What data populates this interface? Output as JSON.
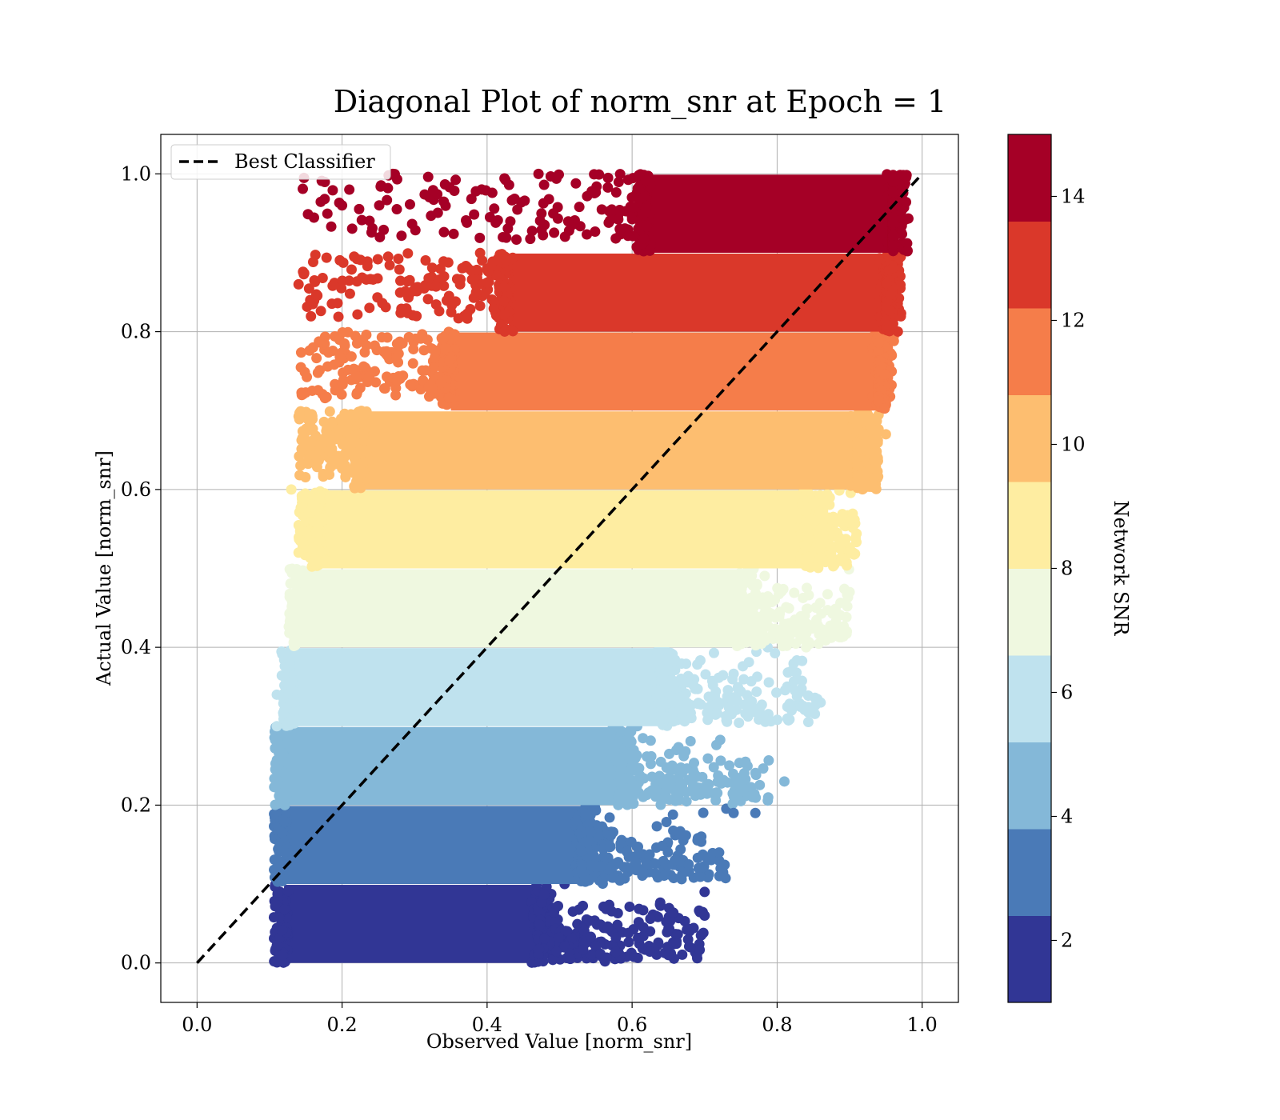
{
  "chart_data": {
    "type": "scatter",
    "title": "Diagonal Plot of norm_snr at Epoch = 1",
    "xlabel": "Observed Value [norm_snr]",
    "ylabel": "Actual Value [norm_snr]",
    "xlim": [
      -0.05,
      1.05
    ],
    "ylim": [
      -0.05,
      1.05
    ],
    "xticks": [
      "0.0",
      "0.2",
      "0.4",
      "0.6",
      "0.8",
      "1.0"
    ],
    "yticks": [
      "0.0",
      "0.2",
      "0.4",
      "0.6",
      "0.8",
      "1.0"
    ],
    "grid": true,
    "legend": {
      "position": "top-left",
      "entries": [
        "Best Classifier"
      ]
    },
    "reference_line": {
      "name": "Best Classifier",
      "x": [
        0.0,
        1.0
      ],
      "y": [
        0.0,
        1.0
      ],
      "style": "dashed",
      "color": "#000000"
    },
    "colorbar": {
      "label": "Network SNR",
      "range": [
        1,
        15
      ],
      "ticks": [
        "2",
        "4",
        "6",
        "8",
        "10",
        "12",
        "14"
      ],
      "colors": [
        "#313695",
        "#4a7ab7",
        "#84b8d8",
        "#bfe2ee",
        "#eff8e0",
        "#feeda1",
        "#fdbe70",
        "#f57d4a",
        "#da382a",
        "#a50026"
      ]
    },
    "bands": [
      {
        "y_range": [
          0.0,
          0.1
        ],
        "x_core": [
          0.12,
          0.47
        ],
        "x_max": 0.7,
        "color": "#313695"
      },
      {
        "y_range": [
          0.1,
          0.2
        ],
        "x_core": [
          0.12,
          0.53
        ],
        "x_max": 0.73,
        "color": "#4a7ab7"
      },
      {
        "y_range": [
          0.2,
          0.3
        ],
        "x_core": [
          0.12,
          0.58
        ],
        "x_max": 0.79,
        "color": "#84b8d8"
      },
      {
        "y_range": [
          0.3,
          0.4
        ],
        "x_core": [
          0.13,
          0.64
        ],
        "x_max": 0.86,
        "color": "#bfe2ee"
      },
      {
        "y_range": [
          0.4,
          0.5
        ],
        "x_core": [
          0.14,
          0.75
        ],
        "x_max": 0.9,
        "color": "#eff8e0"
      },
      {
        "y_range": [
          0.5,
          0.6
        ],
        "x_core": [
          0.17,
          0.84
        ],
        "x_max": 0.91,
        "color": "#feeda1"
      },
      {
        "y_range": [
          0.6,
          0.7
        ],
        "x_core": [
          0.23,
          0.91
        ],
        "x_max": 0.94,
        "color": "#fdbe70"
      },
      {
        "y_range": [
          0.7,
          0.8
        ],
        "x_core": [
          0.35,
          0.94
        ],
        "x_max": 0.95,
        "color": "#f57d4a"
      },
      {
        "y_range": [
          0.8,
          0.9
        ],
        "x_core": [
          0.43,
          0.95
        ],
        "x_max": 0.96,
        "color": "#da382a"
      },
      {
        "y_range": [
          0.9,
          1.0
        ],
        "x_core": [
          0.62,
          0.96
        ],
        "x_max": 0.96,
        "color": "#a50026"
      }
    ],
    "outliers": [
      {
        "x": 0.14,
        "y": 0.86,
        "color": "#da382a"
      },
      {
        "x": 0.2,
        "y": 0.96,
        "color": "#a50026"
      },
      {
        "x": 0.21,
        "y": 0.98,
        "color": "#a50026"
      },
      {
        "x": 0.27,
        "y": 1.0,
        "color": "#a50026"
      },
      {
        "x": 0.16,
        "y": 0.78,
        "color": "#f57d4a"
      },
      {
        "x": 0.13,
        "y": 0.6,
        "color": "#feeda1"
      },
      {
        "x": 0.14,
        "y": 0.52,
        "color": "#feeda1"
      },
      {
        "x": 0.11,
        "y": 0.34,
        "color": "#bfe2ee"
      },
      {
        "x": 0.11,
        "y": 0.3,
        "color": "#bfe2ee"
      },
      {
        "x": 0.86,
        "y": 0.33,
        "color": "#bfe2ee"
      },
      {
        "x": 0.82,
        "y": 0.32,
        "color": "#bfe2ee"
      },
      {
        "x": 0.82,
        "y": 0.37,
        "color": "#bfe2ee"
      },
      {
        "x": 0.9,
        "y": 0.47,
        "color": "#eff8e0"
      },
      {
        "x": 0.84,
        "y": 0.4,
        "color": "#eff8e0"
      },
      {
        "x": 0.81,
        "y": 0.23,
        "color": "#84b8d8"
      },
      {
        "x": 0.77,
        "y": 0.19,
        "color": "#4a7ab7"
      },
      {
        "x": 0.74,
        "y": 0.19,
        "color": "#4a7ab7"
      },
      {
        "x": 0.72,
        "y": 0.14,
        "color": "#4a7ab7"
      },
      {
        "x": 0.7,
        "y": 0.06,
        "color": "#313695"
      },
      {
        "x": 0.68,
        "y": 0.02,
        "color": "#313695"
      },
      {
        "x": 0.65,
        "y": 0.01,
        "color": "#313695"
      },
      {
        "x": 0.7,
        "y": 0.09,
        "color": "#313695"
      },
      {
        "x": 0.95,
        "y": 0.67,
        "color": "#fdbe70"
      },
      {
        "x": 0.96,
        "y": 0.81,
        "color": "#da382a"
      }
    ]
  }
}
